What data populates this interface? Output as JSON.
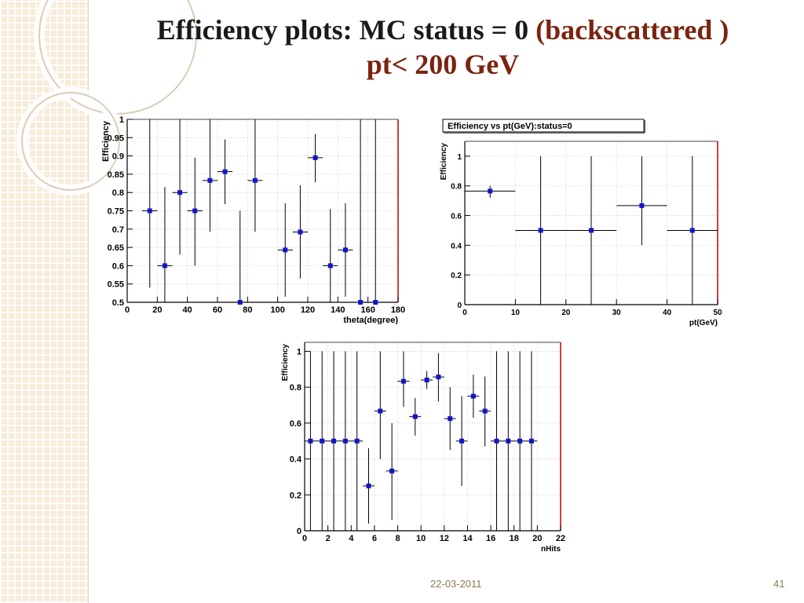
{
  "slide": {
    "title_line1_main": "Efficiency plots: MC status = 0 ",
    "title_line1_highlight": "(backscattered )",
    "title_line2": "pt< 200 GeV",
    "footer_date": "22-03-2011",
    "page_number": "41"
  },
  "colors": {
    "marker": "#1414c8",
    "title_highlight": "#7a2410",
    "sidebar": "#f6ecd8",
    "axis": "#000000"
  },
  "chart_data": [
    {
      "type": "scatter",
      "title": "",
      "xlabel": "theta(degree)",
      "ylabel": "Efficiency",
      "xlim": [
        0,
        180
      ],
      "ylim": [
        0.5,
        1.0
      ],
      "xticks": [
        0,
        20,
        40,
        60,
        80,
        100,
        120,
        140,
        160,
        180
      ],
      "yticks": [
        0.5,
        0.55,
        0.6,
        0.65,
        0.7,
        0.75,
        0.8,
        0.85,
        0.9,
        0.95,
        1
      ],
      "xtick_labels": [
        "0",
        "20",
        "40",
        "60",
        "80",
        "100",
        "120",
        "140",
        "160",
        "180"
      ],
      "ytick_labels": [
        "0.5",
        "0.55",
        "0.6",
        "0.65",
        "0.7",
        "0.75",
        "0.8",
        "0.85",
        "0.9",
        "0.95",
        "1"
      ],
      "grid": true,
      "points": [
        {
          "x": 15,
          "y": 0.75,
          "xerr": 5,
          "ylo": 0.54,
          "yhi": 1.0
        },
        {
          "x": 25,
          "y": 0.6,
          "xerr": 5,
          "ylo": 0.5,
          "yhi": 0.815
        },
        {
          "x": 35,
          "y": 0.8,
          "xerr": 5,
          "ylo": 0.63,
          "yhi": 1.0
        },
        {
          "x": 45,
          "y": 0.75,
          "xerr": 5,
          "ylo": 0.6,
          "yhi": 0.895
        },
        {
          "x": 55,
          "y": 0.833,
          "xerr": 5,
          "ylo": 0.693,
          "yhi": 1.0
        },
        {
          "x": 65,
          "y": 0.857,
          "xerr": 5,
          "ylo": 0.768,
          "yhi": 0.945
        },
        {
          "x": 75,
          "y": 0.5,
          "xerr": 5,
          "ylo": 0.5,
          "yhi": 0.75
        },
        {
          "x": 85,
          "y": 0.833,
          "xerr": 5,
          "ylo": 0.693,
          "yhi": 1.0
        },
        {
          "x": 105,
          "y": 0.643,
          "xerr": 5,
          "ylo": 0.515,
          "yhi": 0.771
        },
        {
          "x": 115,
          "y": 0.692,
          "xerr": 5,
          "ylo": 0.565,
          "yhi": 0.82
        },
        {
          "x": 125,
          "y": 0.895,
          "xerr": 5,
          "ylo": 0.828,
          "yhi": 0.96
        },
        {
          "x": 135,
          "y": 0.6,
          "xerr": 5,
          "ylo": 0.5,
          "yhi": 0.755
        },
        {
          "x": 145,
          "y": 0.643,
          "xerr": 5,
          "ylo": 0.515,
          "yhi": 0.771
        },
        {
          "x": 155,
          "y": 0.5,
          "xerr": 5,
          "ylo": 0.5,
          "yhi": 1.0
        },
        {
          "x": 165,
          "y": 0.5,
          "xerr": 5,
          "ylo": 0.5,
          "yhi": 1.0
        }
      ]
    },
    {
      "type": "scatter",
      "title": "Efficiency vs pt(GeV):status=0",
      "xlabel": "pt(GeV)",
      "ylabel": "Efficiency",
      "xlim": [
        0,
        50
      ],
      "ylim": [
        0,
        1.1
      ],
      "xticks": [
        0,
        10,
        20,
        30,
        40,
        50
      ],
      "yticks": [
        0,
        0.2,
        0.4,
        0.6,
        0.8,
        1
      ],
      "xtick_labels": [
        "0",
        "10",
        "20",
        "30",
        "40",
        "50"
      ],
      "ytick_labels": [
        "0",
        "0.2",
        "0.4",
        "0.6",
        "0.8",
        "1"
      ],
      "grid": true,
      "points": [
        {
          "x": 5,
          "y": 0.765,
          "xerr": 5,
          "ylo": 0.72,
          "yhi": 0.8
        },
        {
          "x": 15,
          "y": 0.5,
          "xerr": 5,
          "ylo": 0.0,
          "yhi": 1.0
        },
        {
          "x": 25,
          "y": 0.5,
          "xerr": 5,
          "ylo": 0.0,
          "yhi": 1.0
        },
        {
          "x": 35,
          "y": 0.667,
          "xerr": 5,
          "ylo": 0.4,
          "yhi": 1.0
        },
        {
          "x": 45,
          "y": 0.5,
          "xerr": 5,
          "ylo": 0.0,
          "yhi": 1.0
        }
      ]
    },
    {
      "type": "scatter",
      "title": "",
      "xlabel": "nHits",
      "ylabel": "Efficiency",
      "xlim": [
        0,
        22
      ],
      "ylim": [
        0,
        1.05
      ],
      "xticks": [
        0,
        2,
        4,
        6,
        8,
        10,
        12,
        14,
        16,
        18,
        20,
        22
      ],
      "yticks": [
        0,
        0.2,
        0.4,
        0.6,
        0.8,
        1
      ],
      "xtick_labels": [
        "0",
        "2",
        "4",
        "6",
        "8",
        "10",
        "12",
        "14",
        "16",
        "18",
        "20",
        "22"
      ],
      "ytick_labels": [
        "0",
        "0.2",
        "0.4",
        "0.6",
        "0.8",
        "1"
      ],
      "grid": true,
      "points": [
        {
          "x": 0.5,
          "y": 0.5,
          "xerr": 0.5,
          "ylo": 0.0,
          "yhi": 1.0
        },
        {
          "x": 1.5,
          "y": 0.5,
          "xerr": 0.5,
          "ylo": 0.0,
          "yhi": 1.0
        },
        {
          "x": 2.5,
          "y": 0.5,
          "xerr": 0.5,
          "ylo": 0.0,
          "yhi": 1.0
        },
        {
          "x": 3.5,
          "y": 0.5,
          "xerr": 0.5,
          "ylo": 0.0,
          "yhi": 1.0
        },
        {
          "x": 4.5,
          "y": 0.5,
          "xerr": 0.5,
          "ylo": 0.0,
          "yhi": 1.0
        },
        {
          "x": 5.5,
          "y": 0.25,
          "xerr": 0.5,
          "ylo": 0.04,
          "yhi": 0.46
        },
        {
          "x": 6.5,
          "y": 0.667,
          "xerr": 0.5,
          "ylo": 0.4,
          "yhi": 1.0
        },
        {
          "x": 7.5,
          "y": 0.333,
          "xerr": 0.5,
          "ylo": 0.06,
          "yhi": 0.6
        },
        {
          "x": 8.5,
          "y": 0.833,
          "xerr": 0.5,
          "ylo": 0.69,
          "yhi": 1.0
        },
        {
          "x": 9.5,
          "y": 0.636,
          "xerr": 0.5,
          "ylo": 0.53,
          "yhi": 0.74
        },
        {
          "x": 10.5,
          "y": 0.84,
          "xerr": 0.5,
          "ylo": 0.79,
          "yhi": 0.89
        },
        {
          "x": 11.5,
          "y": 0.857,
          "xerr": 0.5,
          "ylo": 0.72,
          "yhi": 0.99
        },
        {
          "x": 12.5,
          "y": 0.625,
          "xerr": 0.5,
          "ylo": 0.45,
          "yhi": 0.8
        },
        {
          "x": 13.5,
          "y": 0.5,
          "xerr": 0.5,
          "ylo": 0.25,
          "yhi": 0.75
        },
        {
          "x": 14.5,
          "y": 0.75,
          "xerr": 0.5,
          "ylo": 0.63,
          "yhi": 0.87
        },
        {
          "x": 15.5,
          "y": 0.667,
          "xerr": 0.5,
          "ylo": 0.47,
          "yhi": 0.86
        },
        {
          "x": 16.5,
          "y": 0.5,
          "xerr": 0.5,
          "ylo": 0.0,
          "yhi": 1.0
        },
        {
          "x": 17.5,
          "y": 0.5,
          "xerr": 0.5,
          "ylo": 0.0,
          "yhi": 1.0
        },
        {
          "x": 18.5,
          "y": 0.5,
          "xerr": 0.5,
          "ylo": 0.0,
          "yhi": 1.0
        },
        {
          "x": 19.5,
          "y": 0.5,
          "xerr": 0.5,
          "ylo": 0.0,
          "yhi": 1.0
        }
      ]
    }
  ]
}
